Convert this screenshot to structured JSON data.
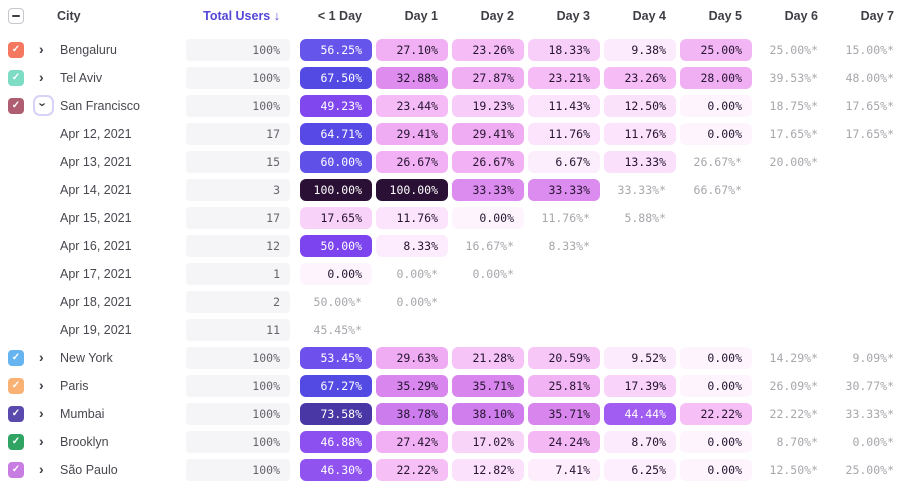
{
  "table": {
    "header": {
      "city_label": "City",
      "total_users_label": "Total Users",
      "sort_arrow": "↓",
      "day_columns": [
        "< 1 Day",
        "Day 1",
        "Day 2",
        "Day 3",
        "Day 4",
        "Day 5",
        "Day 6",
        "Day 7"
      ]
    },
    "glyphs": {
      "check": "✓",
      "chevron": "›",
      "indeterminate": "–"
    },
    "colors": {
      "accent_sort_header": "#5347d8",
      "header_text": "#3e3f45",
      "label_text": "#47484f",
      "pill_bg": "#f5f5f7",
      "pill_text": "#63646a",
      "muted_cell_text": "#a6a7ab",
      "dark_cell_text": "#241430",
      "white_cell_text": "#ffffff",
      "white_text_min": 42,
      "heat_scale": [
        [
          0,
          "#fdf4fe"
        ],
        [
          6,
          "#fdeffd"
        ],
        [
          10,
          "#fce9fd"
        ],
        [
          13,
          "#fbe1fb"
        ],
        [
          17,
          "#f9d4f9"
        ],
        [
          20,
          "#f7c9f8"
        ],
        [
          23,
          "#f5bdf6"
        ],
        [
          26,
          "#f2b2f4"
        ],
        [
          30,
          "#f0abf2"
        ],
        [
          33,
          "#dd8cee"
        ],
        [
          36,
          "#d885ee"
        ],
        [
          40,
          "#c878ed"
        ],
        [
          44,
          "#a55ff2"
        ],
        [
          47,
          "#8b4ff0"
        ],
        [
          50,
          "#7c44ee"
        ],
        [
          55,
          "#6756eb"
        ],
        [
          60,
          "#5f50e8"
        ],
        [
          65,
          "#5649e6"
        ],
        [
          68,
          "#524ae4"
        ],
        [
          74,
          "#47369f"
        ],
        [
          85,
          "#372466"
        ],
        [
          100,
          "#2b1035"
        ]
      ]
    },
    "rows": [
      {
        "type": "city",
        "label": "Bengaluru",
        "checkbox_color": "#f4775f",
        "checked": true,
        "expanded": false,
        "total": "100%",
        "cells": [
          "56.25%",
          "27.10%",
          "23.26%",
          "18.33%",
          "9.38%",
          "25.00%",
          "25.00%*",
          "15.00%*"
        ]
      },
      {
        "type": "city",
        "label": "Tel Aviv",
        "checkbox_color": "#7ddcc3",
        "checked": true,
        "expanded": false,
        "total": "100%",
        "cells": [
          "67.50%",
          "32.88%",
          "27.87%",
          "23.21%",
          "23.26%",
          "28.00%",
          "39.53%*",
          "48.00%*"
        ]
      },
      {
        "type": "city",
        "label": "San Francisco",
        "checkbox_color": "#ae5e70",
        "checked": true,
        "expanded": true,
        "total": "100%",
        "cells": [
          "49.23%",
          "23.44%",
          "19.23%",
          "11.43%",
          "12.50%",
          "0.00%",
          "18.75%*",
          "17.65%*"
        ]
      },
      {
        "type": "date",
        "label": "Apr 12, 2021",
        "total": "17",
        "cells": [
          "64.71%",
          "29.41%",
          "29.41%",
          "11.76%",
          "11.76%",
          "0.00%",
          "17.65%*",
          "17.65%*"
        ]
      },
      {
        "type": "date",
        "label": "Apr 13, 2021",
        "total": "15",
        "cells": [
          "60.00%",
          "26.67%",
          "26.67%",
          "6.67%",
          "13.33%",
          "26.67%*",
          "20.00%*",
          ""
        ]
      },
      {
        "type": "date",
        "label": "Apr 14, 2021",
        "total": "3",
        "cells": [
          "100.00%",
          "100.00%",
          "33.33%",
          "33.33%",
          "33.33%*",
          "66.67%*",
          "",
          ""
        ]
      },
      {
        "type": "date",
        "label": "Apr 15, 2021",
        "total": "17",
        "cells": [
          "17.65%",
          "11.76%",
          "0.00%",
          "11.76%*",
          "5.88%*",
          "",
          "",
          ""
        ]
      },
      {
        "type": "date",
        "label": "Apr 16, 2021",
        "total": "12",
        "cells": [
          "50.00%",
          "8.33%",
          "16.67%*",
          "8.33%*",
          "",
          "",
          "",
          ""
        ]
      },
      {
        "type": "date",
        "label": "Apr 17, 2021",
        "total": "1",
        "cells": [
          "0.00%",
          "0.00%*",
          "0.00%*",
          "",
          "",
          "",
          "",
          ""
        ]
      },
      {
        "type": "date",
        "label": "Apr 18, 2021",
        "total": "2",
        "cells": [
          "50.00%*",
          "0.00%*",
          "",
          "",
          "",
          "",
          "",
          ""
        ]
      },
      {
        "type": "date",
        "label": "Apr 19, 2021",
        "total": "11",
        "cells": [
          "45.45%*",
          "",
          "",
          "",
          "",
          "",
          "",
          ""
        ]
      },
      {
        "type": "city",
        "label": "New York",
        "checkbox_color": "#66b5f0",
        "checked": true,
        "expanded": false,
        "total": "100%",
        "cells": [
          "53.45%",
          "29.63%",
          "21.28%",
          "20.59%",
          "9.52%",
          "0.00%",
          "14.29%*",
          "9.09%*"
        ]
      },
      {
        "type": "city",
        "label": "Paris",
        "checkbox_color": "#f9b273",
        "checked": true,
        "expanded": false,
        "total": "100%",
        "cells": [
          "67.27%",
          "35.29%",
          "35.71%",
          "25.81%",
          "17.39%",
          "0.00%",
          "26.09%*",
          "30.77%*"
        ]
      },
      {
        "type": "city",
        "label": "Mumbai",
        "checkbox_color": "#5b4aae",
        "checked": true,
        "expanded": false,
        "total": "100%",
        "cells": [
          "73.58%",
          "38.78%",
          "38.10%",
          "35.71%",
          "44.44%",
          "22.22%",
          "22.22%*",
          "33.33%*"
        ]
      },
      {
        "type": "city",
        "label": "Brooklyn",
        "checkbox_color": "#2fa463",
        "checked": true,
        "expanded": false,
        "total": "100%",
        "cells": [
          "46.88%",
          "27.42%",
          "17.02%",
          "24.24%",
          "8.70%",
          "0.00%",
          "8.70%*",
          "0.00%*"
        ]
      },
      {
        "type": "city",
        "label": "São Paulo",
        "checkbox_color": "#c77de2",
        "checked": true,
        "expanded": false,
        "total": "100%",
        "cells": [
          "46.30%",
          "22.22%",
          "12.82%",
          "7.41%",
          "6.25%",
          "0.00%",
          "12.50%*",
          "25.00%*"
        ]
      }
    ]
  }
}
